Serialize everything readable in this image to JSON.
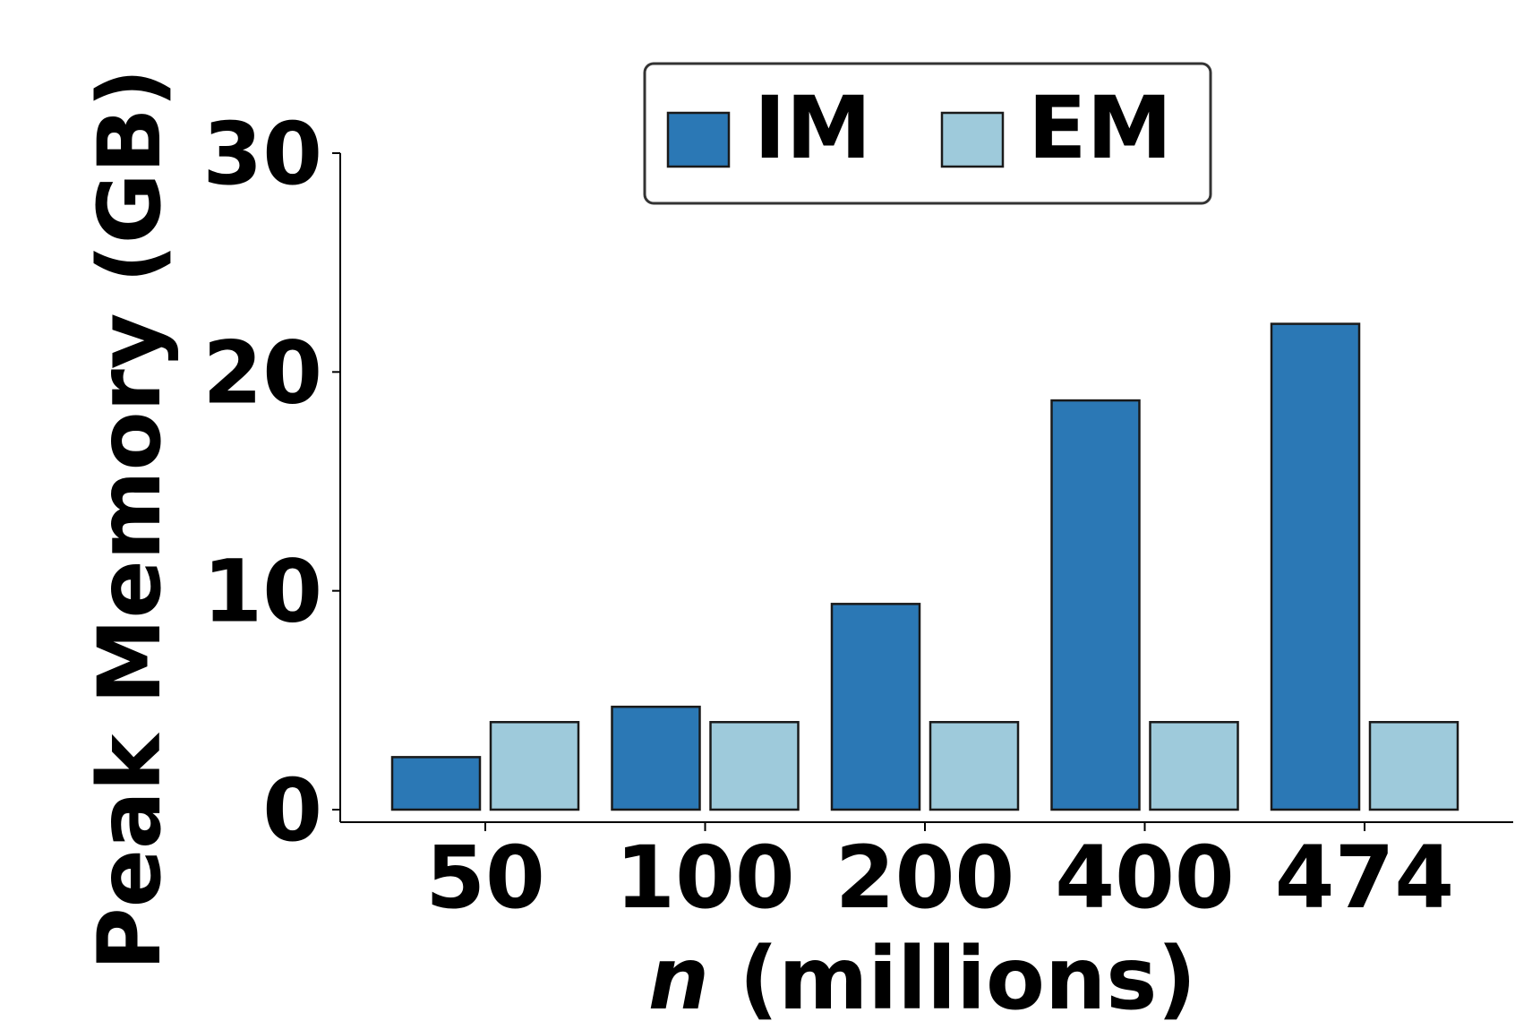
{
  "chart_data": {
    "type": "bar",
    "categories": [
      "50",
      "100",
      "200",
      "400",
      "474"
    ],
    "series": [
      {
        "name": "IM",
        "color": "#2b78b5",
        "values": [
          2.4,
          4.7,
          9.4,
          18.7,
          22.2
        ]
      },
      {
        "name": "EM",
        "color": "#9ecadb",
        "values": [
          4.0,
          4.0,
          4.0,
          4.0,
          4.0
        ]
      }
    ],
    "xlabel_var": "n",
    "xlabel_rest": " (millions)",
    "ylabel": "Peak Memory (GB)",
    "ylim": [
      0,
      30
    ],
    "yticks": [
      "0",
      "10",
      "20",
      "30"
    ],
    "grid": false,
    "legend_position": "top"
  }
}
